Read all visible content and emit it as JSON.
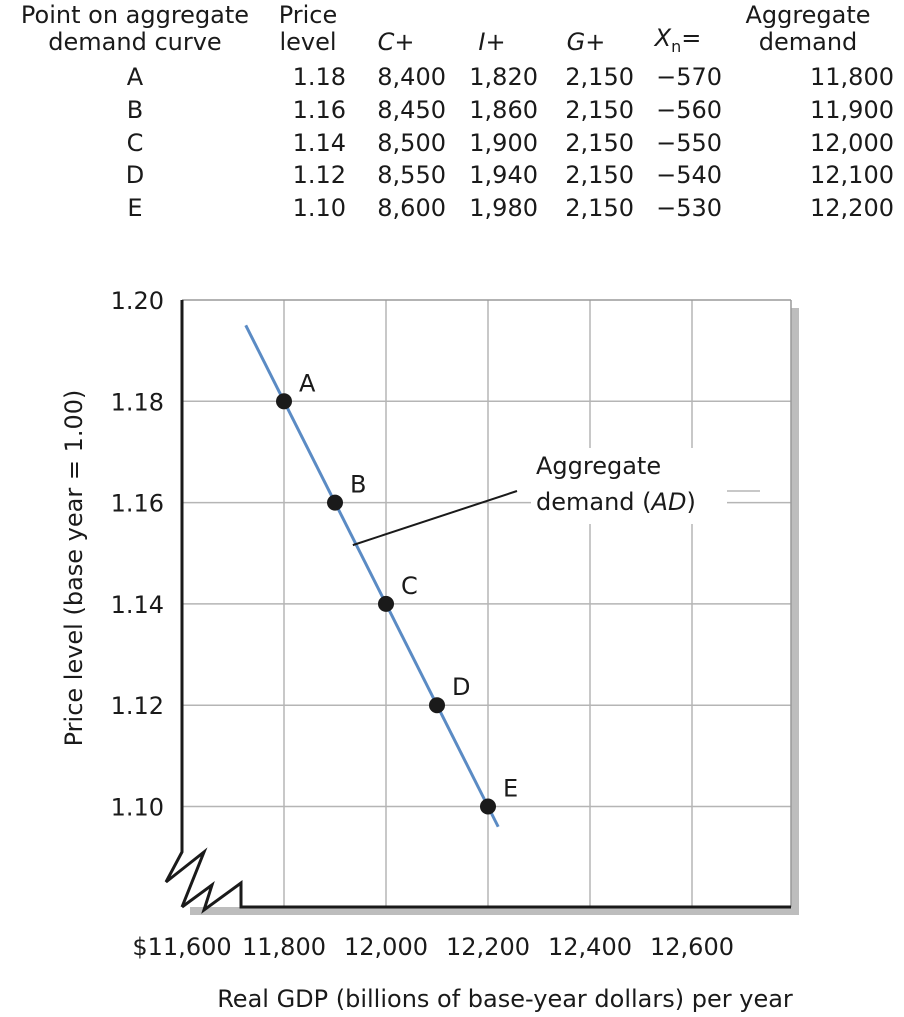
{
  "table": {
    "headers": {
      "point": [
        "Point on aggregate",
        "demand curve"
      ],
      "price": [
        "Price",
        "level"
      ],
      "c": "C+",
      "i": "I+",
      "g": "G+",
      "x_main": "X",
      "x_sub": "n",
      "x_eq": "=",
      "ad": [
        "Aggregate",
        "demand"
      ]
    },
    "rows": [
      {
        "point": "A",
        "price": "1.18",
        "c": "8,400",
        "i": "1,820",
        "g": "2,150",
        "x": "−570",
        "ad": "11,800"
      },
      {
        "point": "B",
        "price": "1.16",
        "c": "8,450",
        "i": "1,860",
        "g": "2,150",
        "x": "−560",
        "ad": "11,900"
      },
      {
        "point": "C",
        "price": "1.14",
        "c": "8,500",
        "i": "1,900",
        "g": "2,150",
        "x": "−550",
        "ad": "12,000"
      },
      {
        "point": "D",
        "price": "1.12",
        "c": "8,550",
        "i": "1,940",
        "g": "2,150",
        "x": "−540",
        "ad": "12,100"
      },
      {
        "point": "E",
        "price": "1.10",
        "c": "8,600",
        "i": "1,980",
        "g": "2,150",
        "x": "−530",
        "ad": "12,200"
      }
    ]
  },
  "chart_data": {
    "type": "line",
    "xlabel": "Real GDP (billions of base-year dollars) per year",
    "ylabel": "Price level (base year = 1.00)",
    "xlim": [
      11600,
      12600
    ],
    "ylim": [
      1.08,
      1.2
    ],
    "x_ticks": [
      11600,
      11800,
      12000,
      12200,
      12400,
      12600
    ],
    "x_tick_labels": [
      "$11,600",
      "11,800",
      "12,000",
      "12,200",
      "12,400",
      "12,600"
    ],
    "y_ticks": [
      1.1,
      1.12,
      1.14,
      1.16,
      1.18,
      1.2
    ],
    "y_tick_labels": [
      "1.10",
      "1.12",
      "1.14",
      "1.16",
      "1.18",
      "1.20"
    ],
    "axis_breaks": [
      "x",
      "y"
    ],
    "grid": true,
    "series": [
      {
        "color": "#5b8bc4",
        "line_extent": {
          "x": [
            11725,
            12220
          ],
          "y": [
            1.195,
            1.096
          ]
        },
        "points": [
          {
            "label": "A",
            "x": 11800,
            "y": 1.18
          },
          {
            "label": "B",
            "x": 11900,
            "y": 1.16
          },
          {
            "label": "C",
            "x": 12000,
            "y": 1.14
          },
          {
            "label": "D",
            "x": 12100,
            "y": 1.12
          },
          {
            "label": "E",
            "x": 12200,
            "y": 1.1
          }
        ]
      }
    ],
    "annotation": {
      "lines": [
        "Aggregate",
        "demand ("
      ],
      "italic": "AD",
      "close": ")",
      "target": {
        "x": 11935,
        "y": 1.152
      }
    }
  }
}
